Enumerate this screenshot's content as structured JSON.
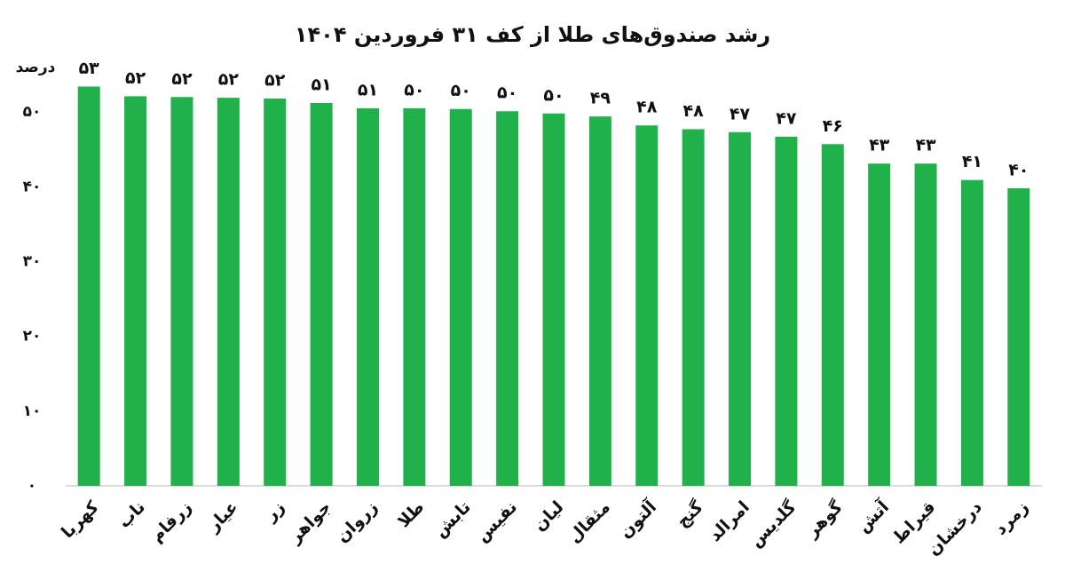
{
  "chart_data": {
    "type": "bar",
    "title": "رشد صندوق‌های طلا از کف ۳۱ فروردین ۱۴۰۴",
    "y_label": "درصد",
    "categories": [
      "کهربا",
      "ناب",
      "زرفام",
      "عیار",
      "زر",
      "جواهر",
      "زروان",
      "طلا",
      "تابش",
      "نفیس",
      "لیان",
      "مثقال",
      "آلتون",
      "گنج",
      "امرالد",
      "گلدیس",
      "گوهر",
      "آتش",
      "قیراط",
      "درخشان",
      "زمرد"
    ],
    "values": [
      53.4,
      52.1,
      52.0,
      51.9,
      51.8,
      51.2,
      50.5,
      50.5,
      50.4,
      50.1,
      49.8,
      49.4,
      48.2,
      47.7,
      47.3,
      46.7,
      45.7,
      43.1,
      43.1,
      40.9,
      39.8
    ],
    "value_labels": [
      "۵۳",
      "۵۲",
      "۵۲",
      "۵۲",
      "۵۲",
      "۵۱",
      "۵۱",
      "۵۰",
      "۵۰",
      "۵۰",
      "۵۰",
      "۴۹",
      "۴۸",
      "۴۸",
      "۴۷",
      "۴۷",
      "۴۶",
      "۴۳",
      "۴۳",
      "۴۱",
      "۴۰"
    ],
    "color": "#21b14b",
    "ylim": [
      0,
      55
    ],
    "yticks": [
      {
        "value": 0,
        "label": "۰"
      },
      {
        "value": 10,
        "label": "۱۰"
      },
      {
        "value": 20,
        "label": "۲۰"
      },
      {
        "value": 30,
        "label": "۳۰"
      },
      {
        "value": 40,
        "label": "۴۰"
      },
      {
        "value": 50,
        "label": "۵۰"
      }
    ],
    "grid": false
  }
}
